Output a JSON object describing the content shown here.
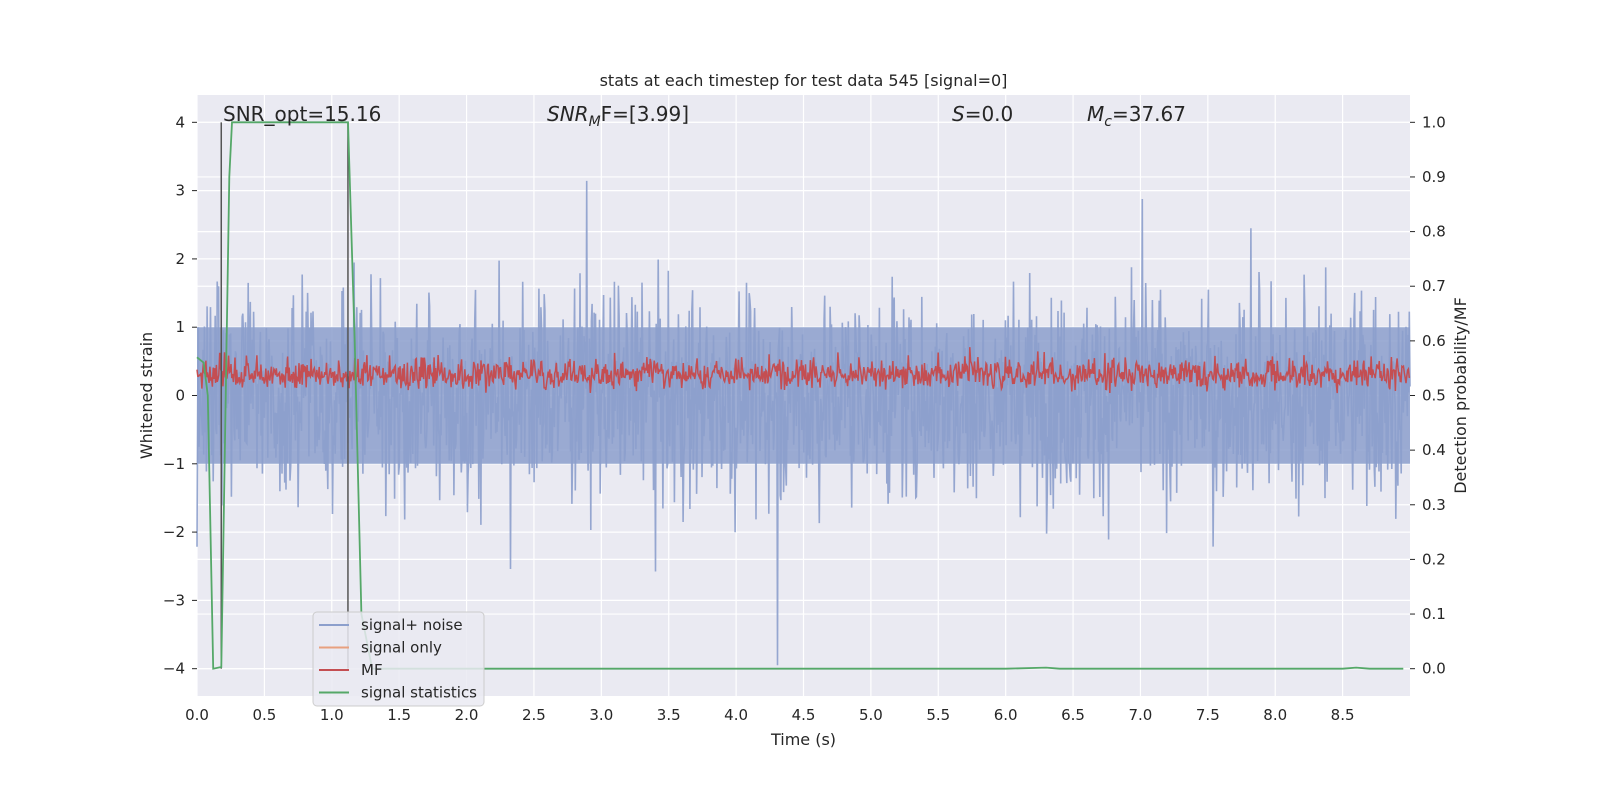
{
  "chart_data": {
    "type": "line",
    "title": "stats at each timestep for test data 545 [signal=0]",
    "xlabel": "Time (s)",
    "ylabel": "Whitened strain",
    "y2label": "Detection probability/MF",
    "xlim": [
      0,
      9.0
    ],
    "ylim": [
      -4.4,
      4.4
    ],
    "y2lim": [
      -0.05,
      1.05
    ],
    "xticks": [
      "0.0",
      "0.5",
      "1.0",
      "1.5",
      "2.0",
      "2.5",
      "3.0",
      "3.5",
      "4.0",
      "4.5",
      "5.0",
      "5.5",
      "6.0",
      "6.5",
      "7.0",
      "7.5",
      "8.0",
      "8.5"
    ],
    "yticks": [
      "4",
      "3",
      "2",
      "1",
      "0",
      "−1",
      "−2",
      "−3",
      "−4"
    ],
    "y2ticks": [
      "1.0",
      "0.9",
      "0.8",
      "0.7",
      "0.6",
      "0.5",
      "0.4",
      "0.3",
      "0.2",
      "0.1",
      "0.0"
    ],
    "grid": true,
    "legend_position": "lower-left",
    "annotations": {
      "snr_opt": "SNR_opt=15.16",
      "snr_mf_base": "SNR",
      "snr_mf_sub": "M",
      "snr_mf_tail": "F=[3.99]",
      "s_base": "S",
      "s_tail": "=0.0",
      "mc_base": "M",
      "mc_sub": "c",
      "mc_tail": "=37.67"
    },
    "vertical_lines_x": [
      0.18,
      1.12
    ],
    "series": [
      {
        "name": "signal+ noise",
        "color": "#8c9fcc",
        "axis": "left",
        "kind": "noise band",
        "approx_range": [
          -3.9,
          3.9
        ]
      },
      {
        "name": "signal only",
        "color": "#e8a07f",
        "axis": "left",
        "values_note": "not visible"
      },
      {
        "name": "MF",
        "color": "#c44e52",
        "axis": "left",
        "kind": "noise band",
        "approx_range": [
          0.0,
          0.9
        ]
      },
      {
        "name": "signal statistics",
        "color": "#55a868",
        "axis": "right",
        "x": [
          0.0,
          0.05,
          0.08,
          0.12,
          0.18,
          0.24,
          0.26,
          0.5,
          1.0,
          1.12,
          1.17,
          1.22,
          1.3,
          2.0,
          3.0,
          4.0,
          5.0,
          6.0,
          6.3,
          6.4,
          7.0,
          8.0,
          8.5,
          8.6,
          8.7,
          8.95
        ],
        "values": [
          0.57,
          0.56,
          0.5,
          0.0,
          0.003,
          0.9,
          1.0,
          1.0,
          1.0,
          1.0,
          0.6,
          0.1,
          0.0,
          0.0,
          0.0,
          0.0,
          0.0,
          0.0,
          0.002,
          0.0,
          0.0,
          0.0,
          0.0,
          0.002,
          0.0,
          0.0
        ]
      }
    ]
  }
}
